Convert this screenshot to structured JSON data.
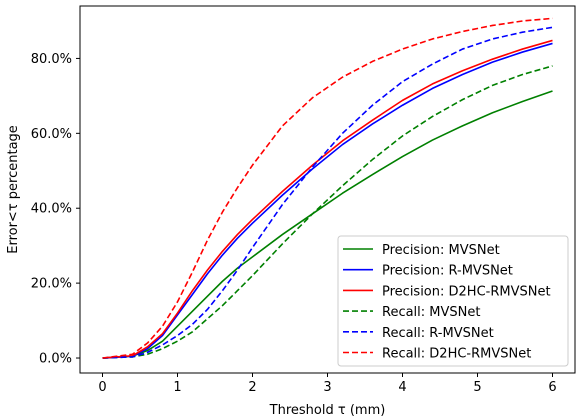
{
  "chart_data": {
    "type": "line",
    "xlabel": "Threshold τ (mm)",
    "ylabel": "Error<τ percentage",
    "xlim": [
      -0.3,
      6.3
    ],
    "ylim": [
      -4.0,
      94.0
    ],
    "x_ticks": [
      0,
      1,
      2,
      3,
      4,
      5,
      6
    ],
    "x_tick_labels": [
      "0",
      "1",
      "2",
      "3",
      "4",
      "5",
      "6"
    ],
    "y_ticks": [
      0,
      20,
      40,
      60,
      80
    ],
    "y_tick_labels": [
      "0.0%",
      "20.0%",
      "40.0%",
      "60.0%",
      "80.0%"
    ],
    "grid": false,
    "legend_position": "bottom-right",
    "series": [
      {
        "name": "Precision: MVSNet",
        "color": "#008000",
        "dash": "solid",
        "x": [
          0,
          0.4,
          0.6,
          0.8,
          1.0,
          1.2,
          1.4,
          1.6,
          1.8,
          2.0,
          2.4,
          2.8,
          3.2,
          3.6,
          4.0,
          4.4,
          4.8,
          5.2,
          5.6,
          6.0
        ],
        "y": [
          0,
          0.5,
          2.0,
          4.5,
          8.5,
          12.5,
          16.5,
          20.5,
          24.0,
          27.0,
          33.0,
          38.5,
          44.0,
          49.0,
          53.8,
          58.2,
          62.0,
          65.5,
          68.5,
          71.3
        ]
      },
      {
        "name": "Precision: R-MVSNet",
        "color": "#0000ff",
        "dash": "solid",
        "x": [
          0,
          0.4,
          0.6,
          0.8,
          1.0,
          1.2,
          1.4,
          1.6,
          1.8,
          2.0,
          2.4,
          2.8,
          3.2,
          3.6,
          4.0,
          4.4,
          4.8,
          5.2,
          5.6,
          6.0
        ],
        "y": [
          0,
          0.5,
          2.5,
          6.0,
          11.5,
          17.0,
          22.5,
          27.5,
          32.0,
          36.0,
          43.5,
          50.5,
          57.0,
          62.5,
          67.5,
          72.0,
          75.7,
          79.0,
          81.7,
          84.0
        ]
      },
      {
        "name": "Precision: D2HC-RMVSNet",
        "color": "#ff0000",
        "dash": "solid",
        "x": [
          0,
          0.4,
          0.6,
          0.8,
          1.0,
          1.2,
          1.4,
          1.6,
          1.8,
          2.0,
          2.4,
          2.8,
          3.2,
          3.6,
          4.0,
          4.4,
          4.8,
          5.2,
          5.6,
          6.0
        ],
        "y": [
          0,
          0.6,
          3.0,
          6.5,
          12.0,
          18.0,
          23.5,
          28.5,
          33.0,
          37.0,
          44.5,
          51.5,
          58.0,
          63.5,
          68.8,
          73.2,
          76.7,
          79.8,
          82.5,
          84.8
        ]
      },
      {
        "name": "Recall: MVSNet",
        "color": "#008000",
        "dash": "dashed",
        "x": [
          0,
          0.4,
          0.6,
          0.8,
          1.0,
          1.2,
          1.4,
          1.6,
          1.8,
          2.0,
          2.4,
          2.8,
          3.2,
          3.6,
          4.0,
          4.4,
          4.8,
          5.2,
          5.6,
          6.0
        ],
        "y": [
          0,
          0.3,
          1.0,
          2.5,
          4.5,
          7.0,
          10.5,
          14.0,
          18.0,
          22.0,
          30.5,
          38.5,
          46.0,
          53.0,
          59.3,
          64.5,
          69.0,
          72.8,
          75.7,
          78.0
        ]
      },
      {
        "name": "Recall: R-MVSNet",
        "color": "#0000ff",
        "dash": "dashed",
        "x": [
          0,
          0.4,
          0.6,
          0.8,
          1.0,
          1.2,
          1.4,
          1.6,
          1.8,
          2.0,
          2.4,
          2.8,
          3.2,
          3.6,
          4.0,
          4.4,
          4.8,
          5.2,
          5.6,
          6.0
        ],
        "y": [
          0,
          0.3,
          1.5,
          3.5,
          6.0,
          9.0,
          13.0,
          18.0,
          23.5,
          29.5,
          41.0,
          51.0,
          60.0,
          67.5,
          73.8,
          78.5,
          82.5,
          85.2,
          87.0,
          88.3
        ]
      },
      {
        "name": "Recall: D2HC-RMVSNet",
        "color": "#ff0000",
        "dash": "dashed",
        "x": [
          0,
          0.4,
          0.6,
          0.8,
          1.0,
          1.2,
          1.4,
          1.6,
          1.8,
          2.0,
          2.4,
          2.8,
          3.2,
          3.6,
          4.0,
          4.4,
          4.8,
          5.2,
          5.6,
          6.0
        ],
        "y": [
          0,
          1.0,
          4.0,
          8.5,
          15.0,
          23.0,
          31.5,
          39.0,
          45.5,
          51.5,
          62.0,
          69.5,
          75.0,
          79.2,
          82.5,
          85.2,
          87.2,
          88.8,
          90.0,
          90.7
        ]
      }
    ]
  }
}
